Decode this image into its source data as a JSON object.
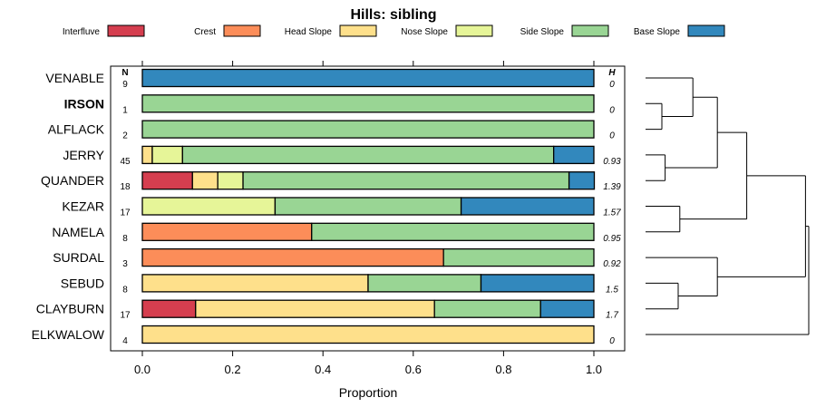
{
  "chart_data": {
    "type": "bar",
    "stacked": true,
    "orientation": "horizontal",
    "title": "Hills: sibling",
    "xlabel": "Proportion",
    "xlim": [
      0,
      1
    ],
    "x_ticks": [
      "0.0",
      "0.2",
      "0.4",
      "0.6",
      "0.8",
      "1.0"
    ],
    "x_tick_values": [
      0,
      0.2,
      0.4,
      0.6,
      0.8,
      1.0
    ],
    "n_header": "N",
    "h_header": "H",
    "legend_position": "top",
    "series": [
      {
        "name": "Interfluve",
        "color": "#d53e4f"
      },
      {
        "name": "Crest",
        "color": "#fc8d59"
      },
      {
        "name": "Head Slope",
        "color": "#fee08b"
      },
      {
        "name": "Nose Slope",
        "color": "#e6f598"
      },
      {
        "name": "Side Slope",
        "color": "#99d594"
      },
      {
        "name": "Base Slope",
        "color": "#3288bd"
      }
    ],
    "categories": [
      "VENABLE",
      "IRSON",
      "ALFLACK",
      "JERRY",
      "QUANDER",
      "KEZAR",
      "NAMELA",
      "SURDAL",
      "SEBUD",
      "CLAYBURN",
      "ELKWALOW"
    ],
    "highlight": "IRSON",
    "n_values": [
      "9",
      "1",
      "2",
      "45",
      "18",
      "17",
      "8",
      "3",
      "8",
      "17",
      "4"
    ],
    "h_values": [
      "0",
      "0",
      "0",
      "0.93",
      "1.39",
      "1.57",
      "0.95",
      "0.92",
      "1.5",
      "1.7",
      "0"
    ],
    "values": [
      [
        0,
        0,
        0,
        0,
        0,
        1.0
      ],
      [
        0,
        0,
        0,
        0,
        1.0,
        0
      ],
      [
        0,
        0,
        0,
        0,
        1.0,
        0
      ],
      [
        0,
        0,
        0.022,
        0.067,
        0.822,
        0.089
      ],
      [
        0.111,
        0,
        0.056,
        0.056,
        0.722,
        0.056
      ],
      [
        0,
        0,
        0,
        0.294,
        0.412,
        0.294
      ],
      [
        0,
        0.375,
        0,
        0,
        0.625,
        0
      ],
      [
        0,
        0.667,
        0,
        0,
        0.333,
        0
      ],
      [
        0,
        0,
        0.5,
        0,
        0.25,
        0.25
      ],
      [
        0.118,
        0,
        0.529,
        0,
        0.235,
        0.118
      ],
      [
        0,
        0,
        1.0,
        0,
        0,
        0
      ]
    ],
    "dendrogram": {
      "merges": [
        [
          2,
          3,
          0.1
        ],
        [
          4,
          5,
          0.12
        ],
        [
          6,
          7,
          0.21
        ],
        [
          9,
          10,
          0.2
        ],
        [
          1,
          -1,
          0.29
        ],
        [
          -5,
          -2,
          0.44
        ],
        [
          8,
          -4,
          0.44
        ],
        [
          -6,
          -3,
          0.62
        ],
        [
          -8,
          -7,
          0.98
        ],
        [
          -9,
          11,
          1.0
        ]
      ]
    }
  }
}
